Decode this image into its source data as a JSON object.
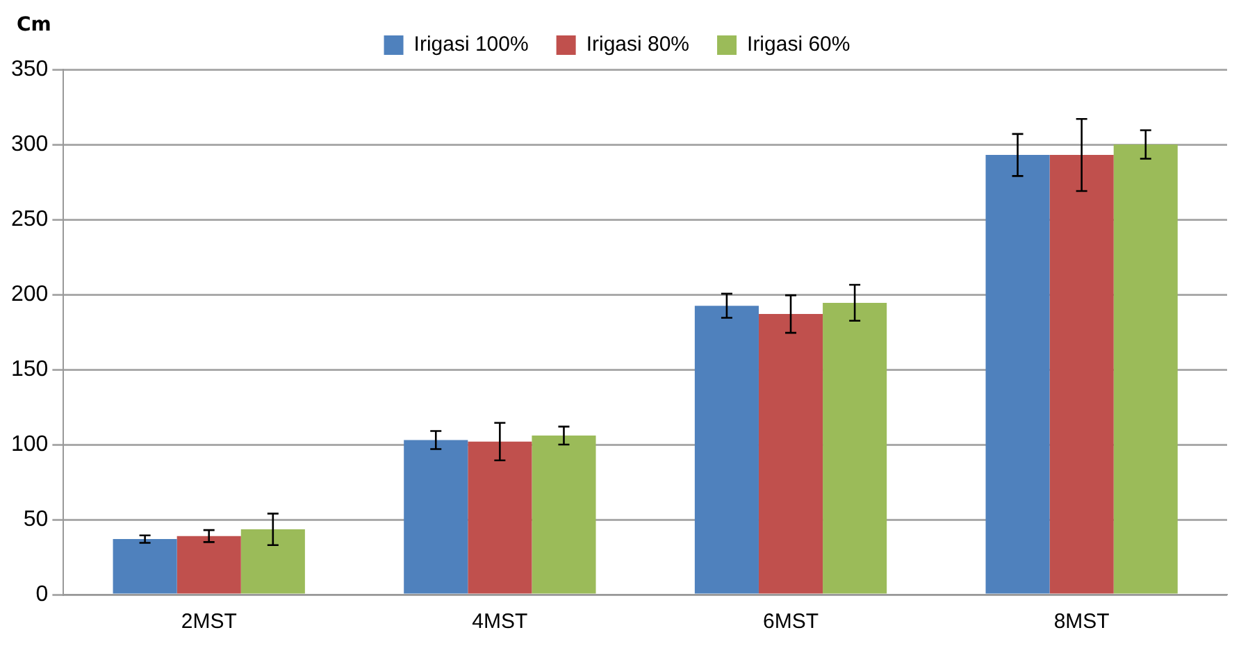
{
  "chart_data": {
    "type": "bar",
    "ylabel": "Cm",
    "categories": [
      "2MST",
      "4MST",
      "6MST",
      "8MST"
    ],
    "series": [
      {
        "name": "Irigasi 100%",
        "color": "#4f81bd",
        "values": [
          37,
          103,
          192.5,
          293
        ],
        "errors": [
          2.5,
          6,
          8,
          14
        ]
      },
      {
        "name": "Irigasi 80%",
        "color": "#c0504d",
        "values": [
          39,
          102,
          187,
          293
        ],
        "errors": [
          4,
          12.5,
          12.5,
          24
        ]
      },
      {
        "name": "Irigasi 60%",
        "color": "#9bbb59",
        "values": [
          43.5,
          106,
          194.5,
          300
        ],
        "errors": [
          10.5,
          6,
          12,
          9.5
        ]
      }
    ],
    "ylim": [
      0,
      350
    ],
    "yticks": [
      0,
      50,
      100,
      150,
      200,
      250,
      300,
      350
    ],
    "grid": "y",
    "legend": "top"
  }
}
